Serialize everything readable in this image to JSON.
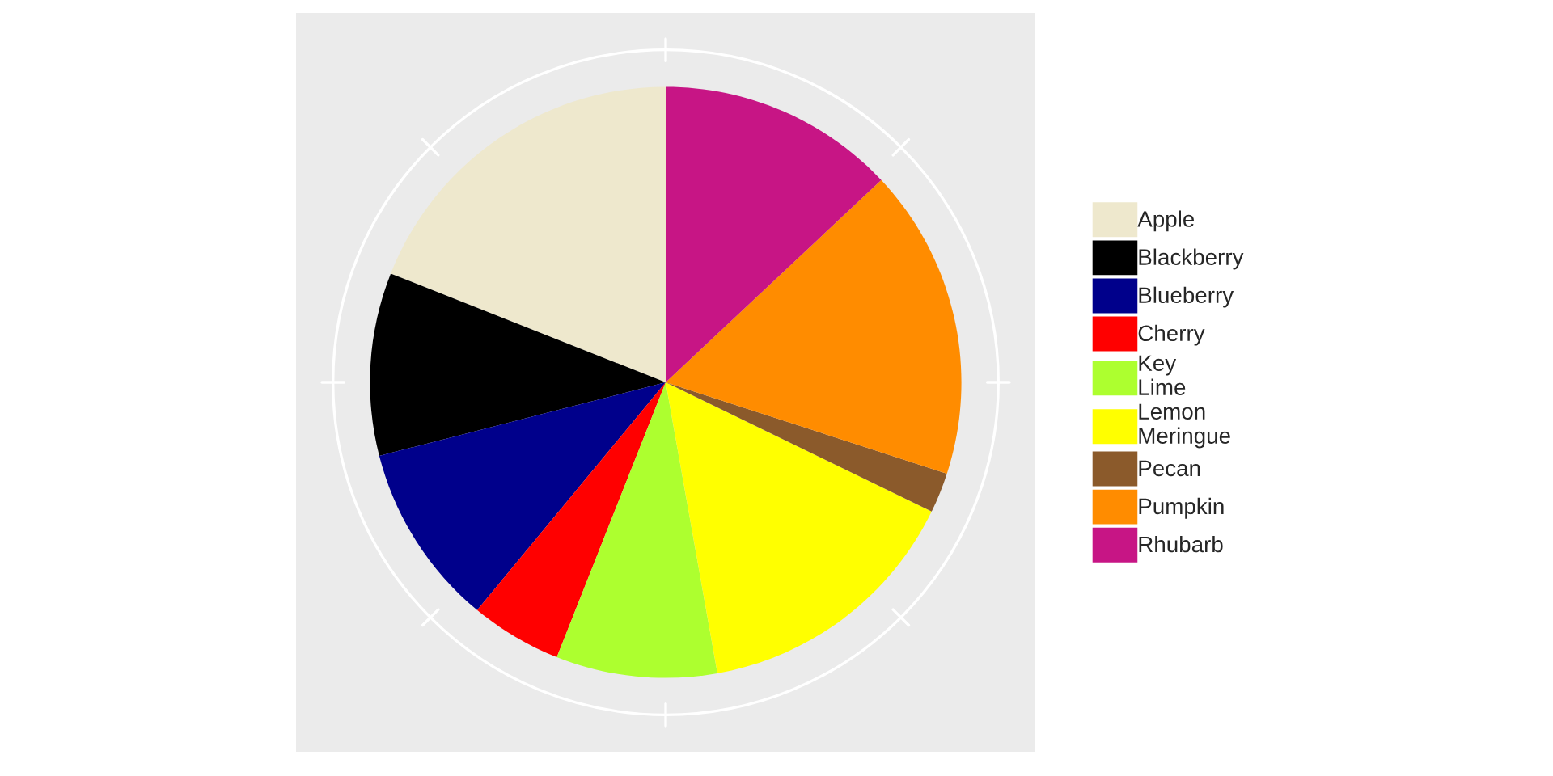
{
  "chart_data": {
    "type": "pie",
    "categories": [
      "Apple",
      "Blackberry",
      "Blueberry",
      "Cherry",
      "Key\nLime",
      "Lemon\nMeringue",
      "Pecan",
      "Pumpkin",
      "Rhubarb"
    ],
    "values": [
      19,
      10,
      10,
      5,
      8.8,
      15,
      2.2,
      17,
      13
    ],
    "colors": [
      "#eee8cd",
      "#000000",
      "#00008b",
      "#ff0000",
      "#adff2f",
      "#ffff00",
      "#8b5a2b",
      "#ff8c00",
      "#c71585"
    ],
    "grid": true,
    "legend": "right"
  }
}
